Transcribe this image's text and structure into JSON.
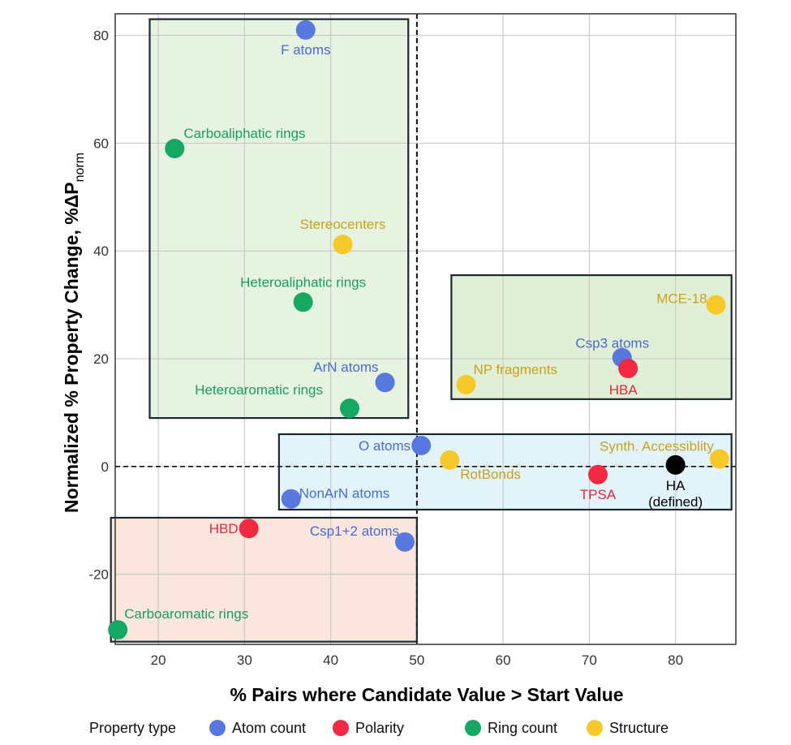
{
  "chart_data": {
    "type": "scatter",
    "xlabel": "% Pairs where Candidate Value > Start Value",
    "ylabel": {
      "main": "Normalized % Property Change, %ΔP",
      "subscript": "norm"
    },
    "xlim": [
      15,
      87
    ],
    "ylim": [
      -33,
      84
    ],
    "x_ticks": [
      20,
      30,
      40,
      50,
      60,
      70,
      80
    ],
    "y_ticks": [
      80,
      60,
      40,
      20,
      0,
      -20
    ],
    "y_tick_labels": {
      "80": "80",
      "60": "60",
      "40": "40",
      "20": "20",
      "0": "0",
      "-20": "-20"
    },
    "grid": true,
    "reference_lines": {
      "x": 50,
      "y": 0
    },
    "legend_position": "bottom",
    "legend": {
      "title": "Property type",
      "entries": [
        {
          "key": "atom",
          "label": "Atom count"
        },
        {
          "key": "polarity",
          "label": "Polarity"
        },
        {
          "key": "ring",
          "label": "Ring count"
        },
        {
          "key": "structure",
          "label": "Structure"
        }
      ]
    },
    "colors": {
      "atom": "#5878e0",
      "polarity": "#f02a42",
      "ring": "#14a863",
      "structure": "#f7c82a",
      "defined": "#000000"
    },
    "label_colors": {
      "atom": "#4a6bd0",
      "polarity": "#e02a3e",
      "ring": "#17a05e",
      "structure": "#c9a21e",
      "defined": "#000000"
    },
    "regions": [
      {
        "x0": 19,
        "x1": 49,
        "y0": 9,
        "y1": 83,
        "fill": "#e6f3e0"
      },
      {
        "x0": 54,
        "x1": 86.5,
        "y0": 12.5,
        "y1": 35.5,
        "fill": "#e0efd6"
      },
      {
        "x0": 34,
        "x1": 86.5,
        "y0": -8,
        "y1": 6,
        "fill": "#e3f3fa"
      },
      {
        "x0": 14.5,
        "x1": 50,
        "y0": -32.5,
        "y1": -9.5,
        "fill": "#fbe6dd"
      }
    ],
    "points": [
      {
        "label": "F atoms",
        "x": 37.1,
        "y": 81,
        "type": "atom"
      },
      {
        "label": "Carboaliphatic rings",
        "x": 21.9,
        "y": 59,
        "type": "ring"
      },
      {
        "label": "Stereocenters",
        "x": 41.4,
        "y": 41.2,
        "type": "structure"
      },
      {
        "label": "Heteroaliphatic rings",
        "x": 36.8,
        "y": 30.5,
        "type": "ring"
      },
      {
        "label": "ArN atoms",
        "x": 46.3,
        "y": 15.6,
        "type": "atom"
      },
      {
        "label": "Heteroaromatic rings",
        "x": 42.2,
        "y": 10.8,
        "type": "ring"
      },
      {
        "label": "MCE-18",
        "x": 84.7,
        "y": 30,
        "type": "structure"
      },
      {
        "label": "Csp3 atoms",
        "x": 73.8,
        "y": 20.2,
        "type": "atom"
      },
      {
        "label": "HBA",
        "x": 74.5,
        "y": 18.2,
        "type": "polarity"
      },
      {
        "label": "NP fragments",
        "x": 55.7,
        "y": 15.2,
        "type": "structure"
      },
      {
        "label": "O atoms",
        "x": 50.5,
        "y": 3.9,
        "type": "atom"
      },
      {
        "label": "RotBonds",
        "x": 53.8,
        "y": 1.2,
        "type": "structure"
      },
      {
        "label": "Synth. Accessiblity",
        "x": 85.1,
        "y": 1.4,
        "type": "structure"
      },
      {
        "label": "HA",
        "sublabel": "(defined)",
        "x": 80,
        "y": 0.3,
        "type": "defined"
      },
      {
        "label": "TPSA",
        "x": 71,
        "y": -1.5,
        "type": "polarity"
      },
      {
        "label": "NonArN atoms",
        "x": 35.4,
        "y": -6,
        "type": "atom"
      },
      {
        "label": "HBD",
        "x": 30.5,
        "y": -11.5,
        "type": "polarity"
      },
      {
        "label": "Csp1+2 atoms",
        "x": 48.6,
        "y": -14,
        "type": "atom"
      },
      {
        "label": "Carboaromatic rings",
        "x": 15.3,
        "y": -30.3,
        "type": "ring"
      }
    ]
  }
}
